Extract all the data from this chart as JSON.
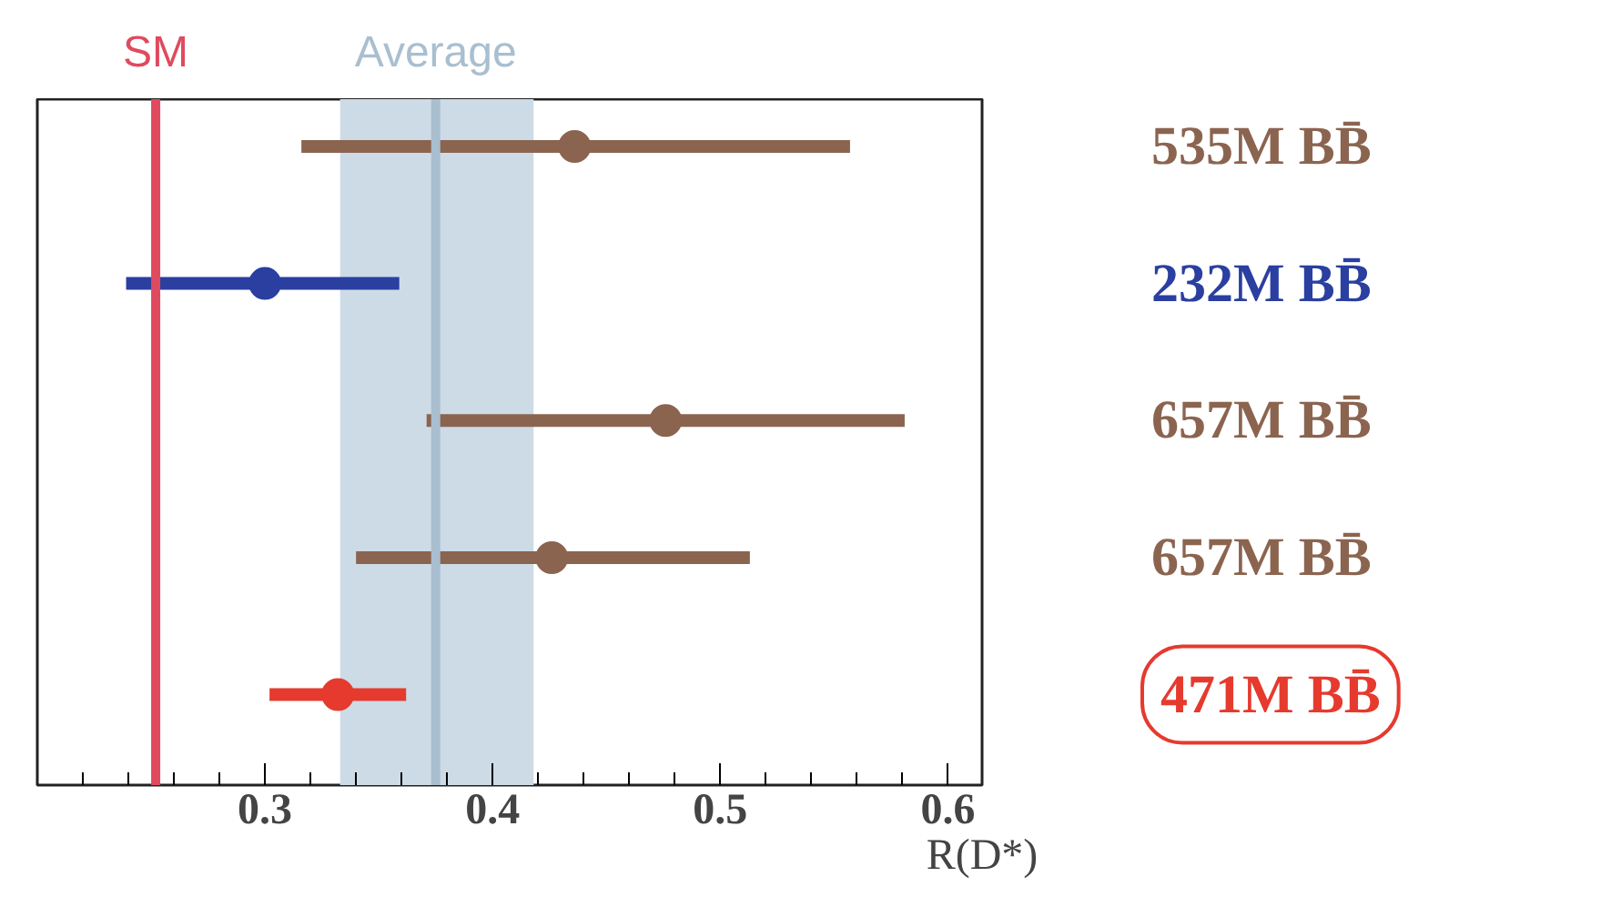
{
  "chart_data": {
    "type": "scatter",
    "orientation": "horizontal",
    "categories": [
      "535M BB̄",
      "232M BB̄",
      "657M BB̄",
      "657M BB̄",
      "471M BB̄"
    ],
    "values": [
      0.436,
      0.3,
      0.476,
      0.426,
      0.332
    ],
    "errors": [
      [
        0.316,
        0.557
      ],
      [
        0.239,
        0.359
      ],
      [
        0.371,
        0.581
      ],
      [
        0.34,
        0.513
      ],
      [
        0.302,
        0.362
      ]
    ],
    "colors": [
      "#8b6450",
      "#2a3fa0",
      "#8b6450",
      "#8b6450",
      "#e63a2e"
    ],
    "marker": "circle",
    "xlim": [
      0.2,
      0.615
    ],
    "xticks": [
      {
        "value": 0.22,
        "label": null
      },
      {
        "value": 0.24,
        "label": null
      },
      {
        "value": 0.26,
        "label": null
      },
      {
        "value": 0.28,
        "label": null
      },
      0.3,
      {
        "value": 0.32,
        "label": null
      },
      {
        "value": 0.34,
        "label": null
      },
      {
        "value": 0.36,
        "label": null
      },
      {
        "value": 0.38,
        "label": null
      },
      0.4,
      {
        "value": 0.42,
        "label": null
      },
      {
        "value": 0.44,
        "label": null
      },
      {
        "value": 0.46,
        "label": null
      },
      {
        "value": 0.48,
        "label": null
      },
      0.5,
      {
        "value": 0.52,
        "label": null
      },
      {
        "value": 0.54,
        "label": null
      },
      {
        "value": 0.56,
        "label": null
      },
      {
        "value": 0.58,
        "label": null
      },
      0.6
    ],
    "xlabel": "R(D*)",
    "bands": [
      {
        "axis": "x",
        "from": 0.333,
        "to": 0.418,
        "color": "#cddbe6"
      }
    ],
    "ref_lines": [
      {
        "axis": "x",
        "value": 0.252,
        "label": "SM",
        "color": "#e04a5e"
      },
      {
        "axis": "x",
        "value": 0.375,
        "label": "Average",
        "color": "#a9bfd0"
      }
    ],
    "grid": false
  }
}
